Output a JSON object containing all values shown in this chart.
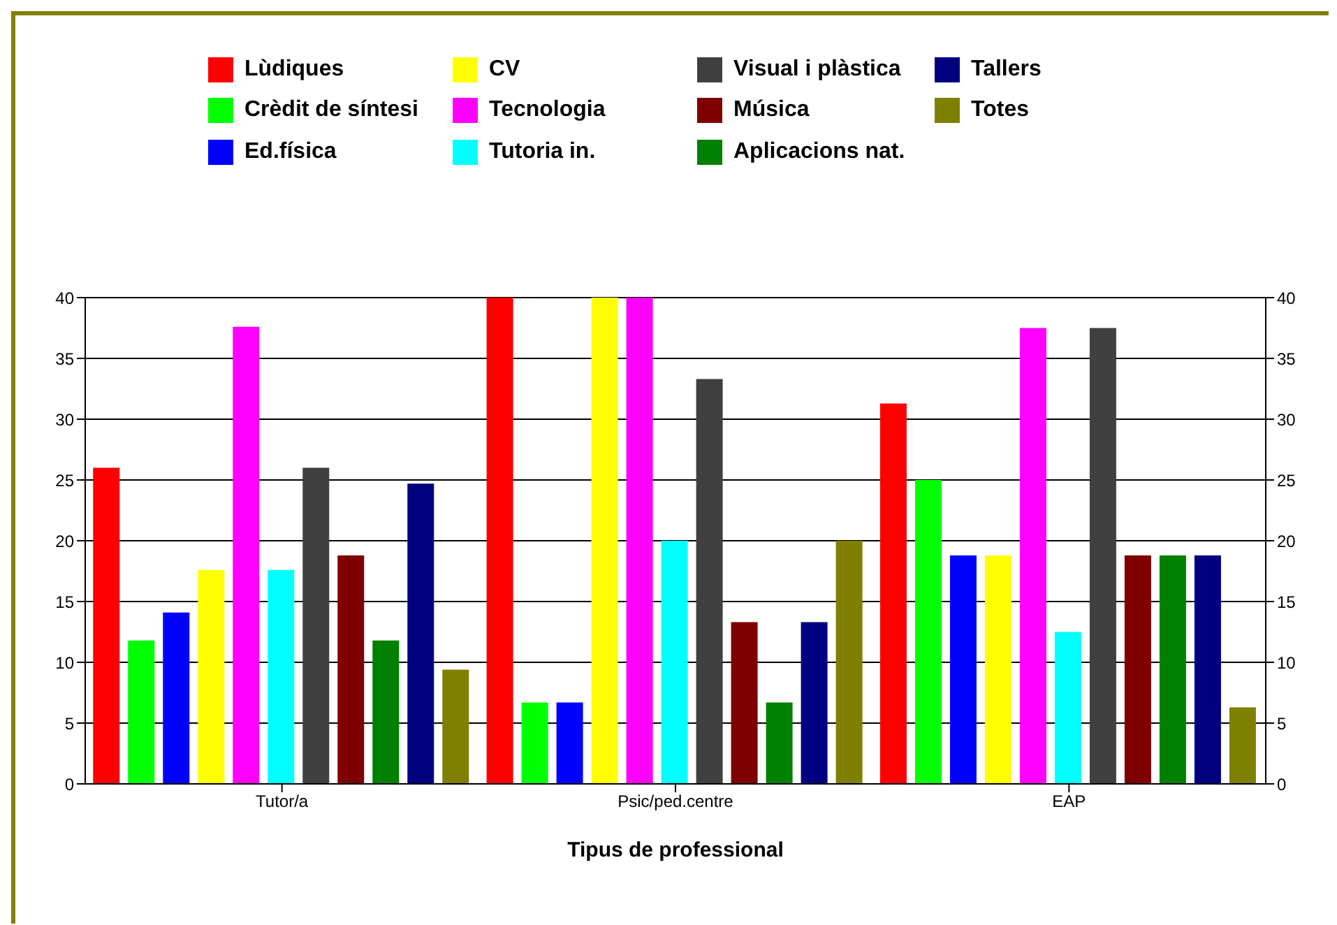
{
  "chart_data": {
    "type": "bar",
    "xlabel": "Tipus de professional",
    "categories": [
      "Tutor/a",
      "Psic/ped.centre",
      "EAP"
    ],
    "series": [
      {
        "name": "Lùdiques",
        "color": "#ff0000",
        "values": [
          26,
          40,
          31.3
        ]
      },
      {
        "name": "Crèdit de síntesi",
        "color": "#00ff00",
        "values": [
          11.8,
          6.7,
          25
        ]
      },
      {
        "name": "Ed.física",
        "color": "#0000ff",
        "values": [
          14.1,
          6.7,
          18.8
        ]
      },
      {
        "name": "CV",
        "color": "#ffff00",
        "values": [
          17.6,
          40,
          18.8
        ]
      },
      {
        "name": "Tecnologia",
        "color": "#ff00ff",
        "values": [
          37.6,
          40,
          37.5
        ]
      },
      {
        "name": "Tutoria in.",
        "color": "#00ffff",
        "values": [
          17.6,
          20,
          12.5
        ]
      },
      {
        "name": "Visual i plàstica",
        "color": "#404040",
        "values": [
          26,
          33.3,
          37.5
        ]
      },
      {
        "name": "Música",
        "color": "#800000",
        "values": [
          18.8,
          13.3,
          18.8
        ]
      },
      {
        "name": "Aplicacions nat.",
        "color": "#008000",
        "values": [
          11.8,
          6.7,
          18.8
        ]
      },
      {
        "name": "Tallers",
        "color": "#000080",
        "values": [
          24.7,
          13.3,
          18.8
        ]
      },
      {
        "name": "Totes",
        "color": "#808000",
        "values": [
          9.4,
          20,
          6.3
        ]
      }
    ],
    "ylim": [
      0,
      40
    ],
    "yticks": [
      0,
      5,
      10,
      15,
      20,
      25,
      30,
      35,
      40
    ],
    "y2lim": [
      0,
      40
    ],
    "y2ticks": [
      0,
      5,
      10,
      15,
      20,
      25,
      30,
      35,
      40
    ],
    "grid": "y",
    "legend": "top"
  }
}
